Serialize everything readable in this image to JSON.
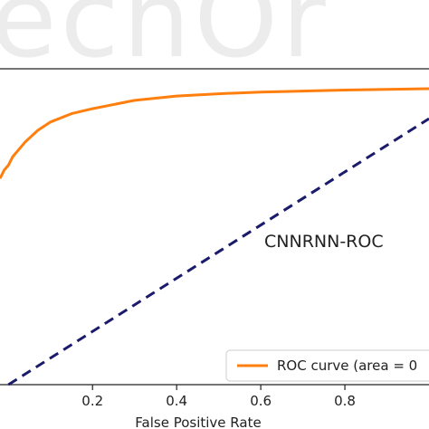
{
  "watermark_text": "echOr",
  "chart_data": {
    "type": "line",
    "xlabel": "False Positive Rate",
    "xlim": [
      -0.02,
      1.0
    ],
    "ylim": [
      0.1,
      1.05
    ],
    "x_ticks": [
      0.2,
      0.4,
      0.6,
      0.8
    ],
    "x_tick_labels": [
      "0.2",
      "0.4",
      "0.6",
      "0.8"
    ],
    "annotation": "CNNRNN-ROC",
    "legend": {
      "position": "bottom-right",
      "label": "ROC curve (area = 0"
    },
    "series": [
      {
        "name": "ROC curve (area = 0",
        "color": "#ff7f0e",
        "style": "solid",
        "x": [
          -0.02,
          -0.01,
          0.0,
          0.01,
          0.02,
          0.04,
          0.07,
          0.1,
          0.15,
          0.2,
          0.3,
          0.4,
          0.5,
          0.6,
          0.7,
          0.8,
          0.9,
          1.0
        ],
        "y": [
          0.72,
          0.745,
          0.76,
          0.785,
          0.8,
          0.83,
          0.865,
          0.89,
          0.915,
          0.93,
          0.955,
          0.968,
          0.975,
          0.98,
          0.983,
          0.986,
          0.988,
          0.99
        ]
      },
      {
        "name": "",
        "color": "#1b1b6b",
        "style": "dashed",
        "x": [
          0.0,
          1.0
        ],
        "y": [
          0.1,
          0.9
        ]
      }
    ]
  }
}
